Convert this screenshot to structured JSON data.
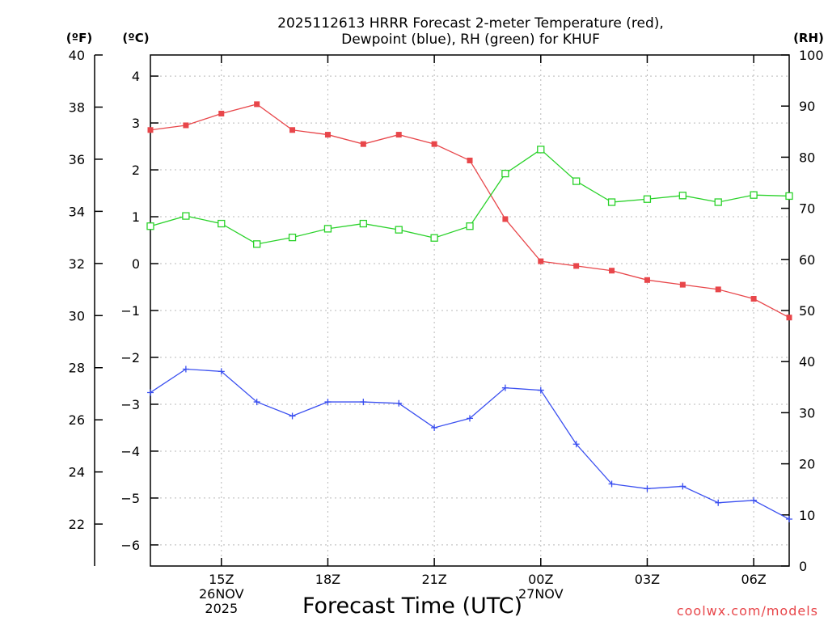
{
  "chart_data": {
    "type": "line",
    "title_lines": [
      "2025112613 HRRR Forecast 2-meter Temperature (red),",
      "Dewpoint (blue), RH (green) for KHUF"
    ],
    "xlabel": "Forecast Time (UTC)",
    "credit": "coolwx.com/models",
    "hours": [
      13,
      14,
      15,
      16,
      17,
      18,
      19,
      20,
      21,
      22,
      23,
      24,
      25,
      26,
      27,
      28,
      29,
      30,
      31
    ],
    "x_ticks": [
      {
        "hour": 15,
        "lines": [
          "15Z",
          "26NOV",
          "2025"
        ]
      },
      {
        "hour": 18,
        "lines": [
          "18Z"
        ]
      },
      {
        "hour": 21,
        "lines": [
          "21Z"
        ]
      },
      {
        "hour": 24,
        "lines": [
          "00Z",
          "27NOV"
        ]
      },
      {
        "hour": 27,
        "lines": [
          "03Z"
        ]
      },
      {
        "hour": 30,
        "lines": [
          "06Z"
        ]
      }
    ],
    "axes": {
      "celsius": {
        "unit_label": "(ºC)",
        "range": [
          -6.45,
          4.45
        ],
        "ticks": [
          -6,
          -5,
          -4,
          -3,
          -2,
          -1,
          0,
          1,
          2,
          3,
          4
        ]
      },
      "fahrenheit": {
        "unit_label": "(ºF)",
        "range": [
          20.39,
          40
        ],
        "ticks": [
          22,
          24,
          26,
          28,
          30,
          32,
          34,
          36,
          38,
          40
        ]
      },
      "rh": {
        "unit_label": "(RH)",
        "range": [
          0,
          100
        ],
        "ticks": [
          0,
          10,
          20,
          30,
          40,
          50,
          60,
          70,
          80,
          90,
          100
        ]
      }
    },
    "series": [
      {
        "name": "2-meter Temperature",
        "axis": "celsius",
        "color": "#e8464a",
        "marker": "filled-square",
        "values": [
          2.85,
          2.95,
          3.2,
          3.4,
          2.85,
          2.75,
          2.55,
          2.75,
          2.55,
          2.2,
          0.95,
          0.05,
          -0.05,
          -0.15,
          -0.35,
          -0.45,
          -0.55,
          -0.75,
          -1.15
        ]
      },
      {
        "name": "Dewpoint",
        "axis": "celsius",
        "color": "#3a4ff0",
        "marker": "plus",
        "values": [
          -2.75,
          -2.25,
          -2.3,
          -2.95,
          -3.25,
          -2.95,
          -2.95,
          -2.98,
          -3.5,
          -3.3,
          -2.65,
          -2.7,
          -3.85,
          -4.7,
          -4.8,
          -4.75,
          -5.1,
          -5.05,
          -5.45
        ]
      },
      {
        "name": "RH",
        "axis": "rh",
        "color": "#2ad22a",
        "marker": "open-square",
        "values": [
          66.5,
          68.5,
          67,
          63,
          64.3,
          66,
          67,
          65.8,
          64.2,
          66.5,
          76.8,
          81.5,
          75.3,
          71.2,
          71.8,
          72.5,
          71.2,
          72.6,
          72.4
        ]
      }
    ]
  }
}
